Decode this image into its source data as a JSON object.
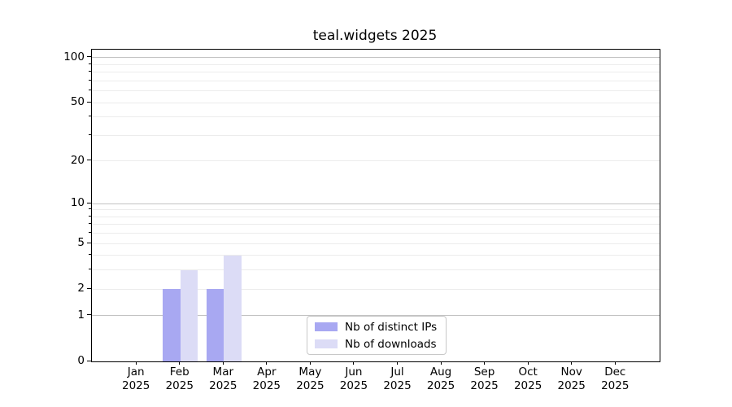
{
  "title": "teal.widgets 2025",
  "chart_data": {
    "type": "bar",
    "title": "teal.widgets 2025",
    "categories": [
      "Jan",
      "Feb",
      "Mar",
      "Apr",
      "May",
      "Jun",
      "Jul",
      "Aug",
      "Sep",
      "Oct",
      "Nov",
      "Dec"
    ],
    "x_year": "2025",
    "series": [
      {
        "name": "Nb of distinct IPs",
        "color": "#a8a8f2",
        "values": [
          0,
          2,
          2,
          0,
          0,
          0,
          0,
          0,
          0,
          0,
          0,
          0
        ]
      },
      {
        "name": "Nb of downloads",
        "color": "#dcdcf6",
        "values": [
          0,
          3,
          4,
          0,
          0,
          0,
          0,
          0,
          0,
          0,
          0,
          0
        ]
      }
    ],
    "yscale": "log1p",
    "ylim": [
      0,
      113
    ],
    "y_ticks": [
      {
        "value": 100,
        "label": "100"
      },
      {
        "value": 50,
        "label": "50"
      },
      {
        "value": 20,
        "label": "20"
      },
      {
        "value": 10,
        "label": "10"
      },
      {
        "value": 5,
        "label": "5"
      },
      {
        "value": 2,
        "label": "2"
      },
      {
        "value": 1,
        "label": "1"
      },
      {
        "value": 0,
        "label": "0"
      }
    ],
    "y_minor_tick_values": [
      3,
      4,
      6,
      7,
      8,
      9,
      30,
      40,
      60,
      70,
      80,
      90
    ],
    "grid": {
      "orientation": "horizontal",
      "major_values": [
        1,
        10,
        100
      ],
      "minor_values": [
        2,
        3,
        4,
        5,
        6,
        7,
        8,
        9,
        20,
        30,
        40,
        50,
        60,
        70,
        80,
        90
      ],
      "major_color": "#c2c2c2",
      "minor_color": "#ececec"
    },
    "legend_position": "lower center",
    "bar_width_fraction": 0.4
  },
  "colors": {
    "background": "#ffffff",
    "spine": "#000000",
    "text": "#000000",
    "legend_border": "#c8c8c8"
  }
}
